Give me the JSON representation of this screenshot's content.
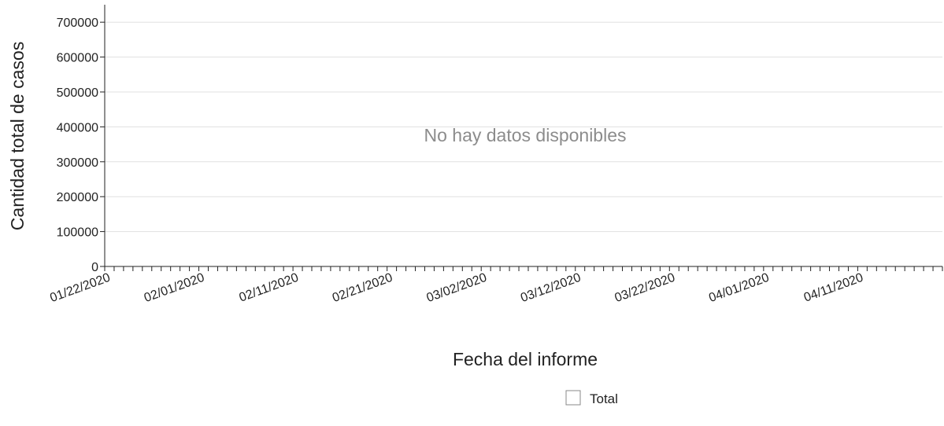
{
  "chart_data": {
    "type": "line",
    "title": "",
    "xlabel": "Fecha del informe",
    "ylabel": "Cantidad total de casos",
    "x_start": "01/22/2020",
    "x_end": "04/20/2020",
    "x_tick_labels": [
      "01/22/2020",
      "02/01/2020",
      "02/11/2020",
      "02/21/2020",
      "03/02/2020",
      "03/12/2020",
      "03/22/2020",
      "04/01/2020",
      "04/11/2020"
    ],
    "ylim": [
      0,
      750000
    ],
    "y_ticks": [
      0,
      100000,
      200000,
      300000,
      400000,
      500000,
      600000,
      700000
    ],
    "y_tick_labels": [
      "0",
      "100000",
      "200000",
      "300000",
      "400000",
      "500000",
      "600000",
      "700000"
    ],
    "series": [
      {
        "name": "Total",
        "values": []
      }
    ],
    "grid": true,
    "legend_position": "bottom",
    "no_data_message": "No hay datos disponibles",
    "colors": {
      "axis": "#222222",
      "grid": "#e0e0e0",
      "no_data_text": "#8c8c8c",
      "legend_box": "#888888"
    }
  }
}
